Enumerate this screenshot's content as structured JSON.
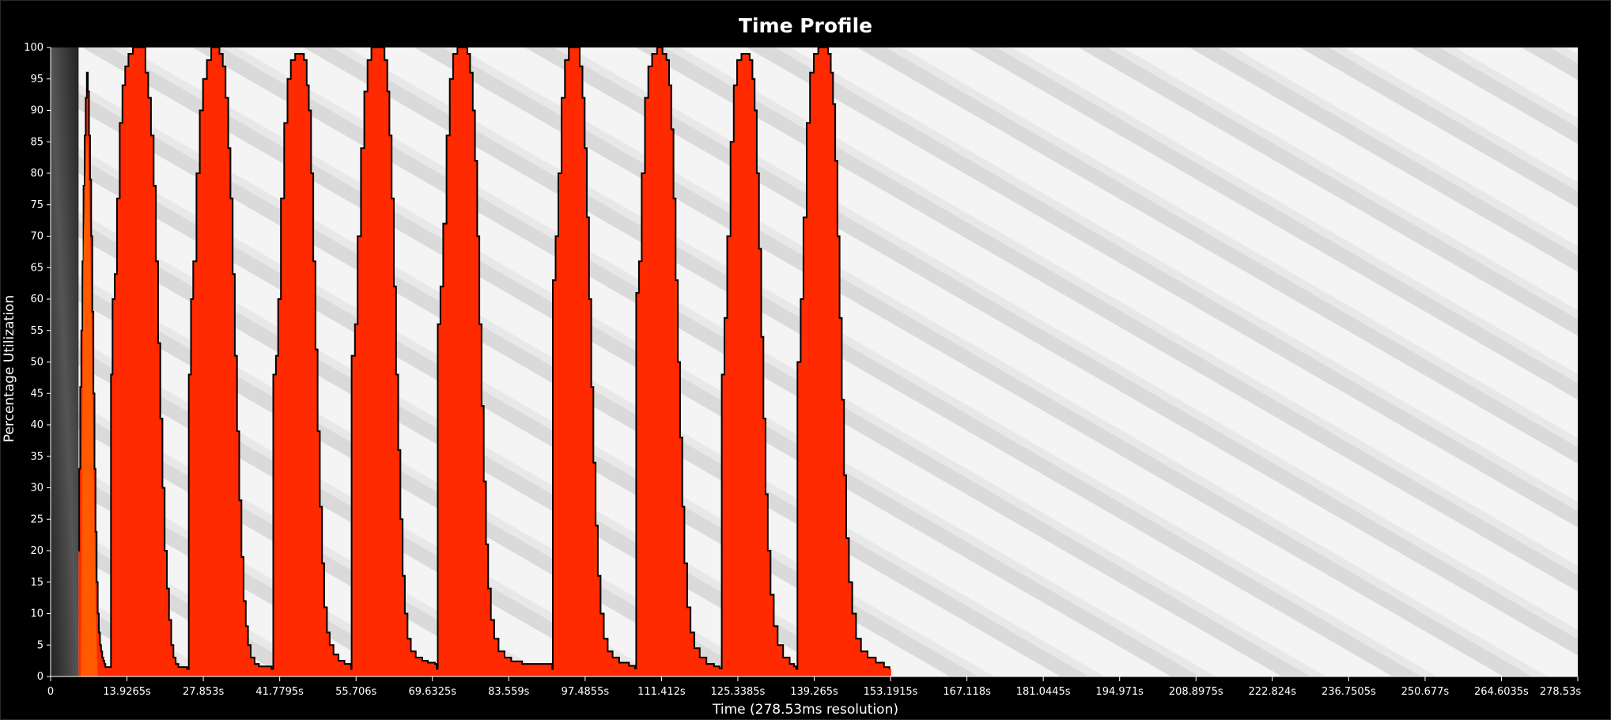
{
  "chart_data": {
    "type": "area",
    "title": "Time Profile",
    "xlabel": "Time (278.53ms resolution)",
    "ylabel": "Percentage Utilization",
    "xlim": [
      0,
      278.53
    ],
    "ylim": [
      0,
      100
    ],
    "y_ticks": [
      0,
      5,
      10,
      15,
      20,
      25,
      30,
      35,
      40,
      45,
      50,
      55,
      60,
      65,
      70,
      75,
      80,
      85,
      90,
      95,
      100
    ],
    "x_ticks": [
      {
        "value": 0,
        "label": "0"
      },
      {
        "value": 13.9265,
        "label": "13.9265s"
      },
      {
        "value": 27.853,
        "label": "27.853s"
      },
      {
        "value": 41.7795,
        "label": "41.7795s"
      },
      {
        "value": 55.706,
        "label": "55.706s"
      },
      {
        "value": 69.6325,
        "label": "69.6325s"
      },
      {
        "value": 83.559,
        "label": "83.559s"
      },
      {
        "value": 97.4855,
        "label": "97.4855s"
      },
      {
        "value": 111.412,
        "label": "111.412s"
      },
      {
        "value": 125.3385,
        "label": "125.3385s"
      },
      {
        "value": 139.265,
        "label": "139.265s"
      },
      {
        "value": 153.1915,
        "label": "153.1915s"
      },
      {
        "value": 167.118,
        "label": "167.118s"
      },
      {
        "value": 181.0445,
        "label": "181.0445s"
      },
      {
        "value": 194.971,
        "label": "194.971s"
      },
      {
        "value": 208.8975,
        "label": "208.8975s"
      },
      {
        "value": 222.824,
        "label": "222.824s"
      },
      {
        "value": 236.7505,
        "label": "236.7505s"
      },
      {
        "value": 250.677,
        "label": "250.677s"
      },
      {
        "value": 264.6035,
        "label": "264.6035s"
      },
      {
        "value": 278.53,
        "label": "278.53s"
      }
    ],
    "grid": false,
    "legend": "none",
    "colors": {
      "series": "#ff2a00",
      "secondary": "#ff5a00",
      "outline": "#000000",
      "background_stripe_a": "#f7f7f7",
      "background_stripe_b": "#dcdcdc",
      "startup_band": "#2b2b2b"
    },
    "startup_band": [
      0,
      5.1
    ],
    "series": [
      {
        "points": [
          [
            5.1,
            20
          ],
          [
            5.2,
            33
          ],
          [
            5.4,
            46
          ],
          [
            5.6,
            55
          ],
          [
            5.8,
            66
          ],
          [
            6.0,
            78
          ],
          [
            6.2,
            86
          ],
          [
            6.4,
            92
          ],
          [
            6.6,
            96
          ],
          [
            6.8,
            93
          ],
          [
            7.0,
            86
          ],
          [
            7.2,
            79
          ],
          [
            7.4,
            70
          ],
          [
            7.6,
            58
          ],
          [
            7.8,
            45
          ],
          [
            8.0,
            33
          ],
          [
            8.2,
            23
          ],
          [
            8.4,
            15
          ],
          [
            8.6,
            10
          ],
          [
            8.8,
            7
          ],
          [
            9.0,
            5
          ],
          [
            9.2,
            4
          ],
          [
            9.4,
            3
          ],
          [
            9.6,
            2.5
          ],
          [
            9.8,
            2
          ],
          [
            10.0,
            1.5
          ],
          [
            11.0,
            48
          ],
          [
            11.3,
            60
          ],
          [
            11.7,
            64
          ],
          [
            12.1,
            76
          ],
          [
            12.6,
            88
          ],
          [
            13.1,
            94
          ],
          [
            13.6,
            97
          ],
          [
            14.2,
            99
          ],
          [
            15.0,
            100
          ],
          [
            16.0,
            100
          ],
          [
            16.8,
            100
          ],
          [
            17.3,
            96
          ],
          [
            17.8,
            92
          ],
          [
            18.3,
            86
          ],
          [
            18.8,
            78
          ],
          [
            19.2,
            66
          ],
          [
            19.6,
            53
          ],
          [
            20.0,
            41
          ],
          [
            20.4,
            30
          ],
          [
            20.8,
            20
          ],
          [
            21.2,
            14
          ],
          [
            21.6,
            9
          ],
          [
            22.0,
            5
          ],
          [
            22.4,
            3
          ],
          [
            22.8,
            2
          ],
          [
            23.3,
            1.5
          ],
          [
            24.2,
            1.5
          ],
          [
            24.9,
            1.2
          ],
          [
            25.2,
            48
          ],
          [
            25.6,
            60
          ],
          [
            26.0,
            66
          ],
          [
            26.6,
            80
          ],
          [
            27.2,
            90
          ],
          [
            27.8,
            95
          ],
          [
            28.5,
            98
          ],
          [
            29.3,
            100
          ],
          [
            30.1,
            100
          ],
          [
            30.8,
            99
          ],
          [
            31.4,
            97
          ],
          [
            31.9,
            92
          ],
          [
            32.4,
            84
          ],
          [
            32.8,
            76
          ],
          [
            33.2,
            64
          ],
          [
            33.6,
            51
          ],
          [
            34.0,
            39
          ],
          [
            34.4,
            28
          ],
          [
            34.8,
            19
          ],
          [
            35.2,
            12
          ],
          [
            35.6,
            8
          ],
          [
            36.0,
            5
          ],
          [
            36.5,
            3
          ],
          [
            37.2,
            2
          ],
          [
            38.0,
            1.6
          ],
          [
            39.4,
            1.6
          ],
          [
            40.3,
            1.2
          ],
          [
            40.6,
            48
          ],
          [
            41.1,
            51
          ],
          [
            41.5,
            60
          ],
          [
            42.0,
            76
          ],
          [
            42.6,
            88
          ],
          [
            43.2,
            95
          ],
          [
            43.8,
            98
          ],
          [
            44.6,
            99
          ],
          [
            45.5,
            99
          ],
          [
            46.2,
            98
          ],
          [
            46.7,
            94
          ],
          [
            47.1,
            90
          ],
          [
            47.5,
            80
          ],
          [
            47.9,
            66
          ],
          [
            48.3,
            52
          ],
          [
            48.7,
            39
          ],
          [
            49.1,
            27
          ],
          [
            49.5,
            18
          ],
          [
            49.9,
            11
          ],
          [
            50.4,
            7
          ],
          [
            50.9,
            5
          ],
          [
            51.6,
            3.5
          ],
          [
            52.5,
            2.5
          ],
          [
            53.6,
            2
          ],
          [
            54.8,
            1.8
          ],
          [
            54.8,
            1.2
          ],
          [
            54.9,
            51
          ],
          [
            55.5,
            56
          ],
          [
            56.0,
            70
          ],
          [
            56.6,
            84
          ],
          [
            57.2,
            93
          ],
          [
            57.8,
            98
          ],
          [
            58.5,
            100
          ],
          [
            59.4,
            100
          ],
          [
            60.3,
            100
          ],
          [
            60.9,
            98
          ],
          [
            61.4,
            93
          ],
          [
            61.8,
            86
          ],
          [
            62.2,
            76
          ],
          [
            62.6,
            62
          ],
          [
            63.0,
            48
          ],
          [
            63.4,
            36
          ],
          [
            63.8,
            25
          ],
          [
            64.2,
            16
          ],
          [
            64.6,
            10
          ],
          [
            65.1,
            6
          ],
          [
            65.7,
            4
          ],
          [
            66.6,
            3
          ],
          [
            67.8,
            2.5
          ],
          [
            68.8,
            2.2
          ],
          [
            70.1,
            2
          ],
          [
            70.4,
            1.2
          ],
          [
            70.6,
            56
          ],
          [
            71.1,
            62
          ],
          [
            71.6,
            72
          ],
          [
            72.2,
            86
          ],
          [
            72.8,
            95
          ],
          [
            73.4,
            99
          ],
          [
            74.2,
            100
          ],
          [
            75.2,
            100
          ],
          [
            76.0,
            99
          ],
          [
            76.5,
            96
          ],
          [
            77.0,
            90
          ],
          [
            77.4,
            82
          ],
          [
            77.8,
            70
          ],
          [
            78.2,
            56
          ],
          [
            78.6,
            43
          ],
          [
            79.0,
            31
          ],
          [
            79.4,
            21
          ],
          [
            79.8,
            14
          ],
          [
            80.3,
            9
          ],
          [
            80.9,
            6
          ],
          [
            81.7,
            4
          ],
          [
            82.8,
            3
          ],
          [
            84.0,
            2.4
          ],
          [
            86.0,
            2
          ],
          [
            88.0,
            2
          ],
          [
            91.4,
            2
          ],
          [
            91.5,
            1.2
          ],
          [
            91.6,
            63
          ],
          [
            92.1,
            70
          ],
          [
            92.6,
            80
          ],
          [
            93.2,
            92
          ],
          [
            93.8,
            98
          ],
          [
            94.5,
            100
          ],
          [
            95.3,
            100
          ],
          [
            96.0,
            100
          ],
          [
            96.5,
            97
          ],
          [
            97.0,
            92
          ],
          [
            97.4,
            84
          ],
          [
            97.8,
            73
          ],
          [
            98.2,
            60
          ],
          [
            98.6,
            46
          ],
          [
            99.0,
            34
          ],
          [
            99.4,
            24
          ],
          [
            99.8,
            16
          ],
          [
            100.3,
            10
          ],
          [
            100.9,
            6
          ],
          [
            101.6,
            4
          ],
          [
            102.5,
            3
          ],
          [
            103.7,
            2.2
          ],
          [
            105.5,
            1.7
          ],
          [
            106.6,
            1.3
          ],
          [
            106.8,
            61
          ],
          [
            107.3,
            66
          ],
          [
            107.8,
            80
          ],
          [
            108.4,
            92
          ],
          [
            109.0,
            97
          ],
          [
            109.7,
            99
          ],
          [
            110.6,
            100
          ],
          [
            111.6,
            99
          ],
          [
            112.3,
            98
          ],
          [
            112.8,
            94
          ],
          [
            113.2,
            87
          ],
          [
            113.6,
            76
          ],
          [
            114.0,
            63
          ],
          [
            114.4,
            50
          ],
          [
            114.8,
            38
          ],
          [
            115.2,
            27
          ],
          [
            115.6,
            18
          ],
          [
            116.1,
            11
          ],
          [
            116.7,
            7
          ],
          [
            117.4,
            4.5
          ],
          [
            118.4,
            3
          ],
          [
            119.6,
            2
          ],
          [
            121.0,
            1.6
          ],
          [
            122.0,
            1.3
          ],
          [
            122.4,
            48
          ],
          [
            122.9,
            57
          ],
          [
            123.4,
            70
          ],
          [
            124.0,
            85
          ],
          [
            124.6,
            94
          ],
          [
            125.2,
            98
          ],
          [
            126.0,
            99
          ],
          [
            126.8,
            99
          ],
          [
            127.5,
            98
          ],
          [
            128.0,
            95
          ],
          [
            128.4,
            90
          ],
          [
            128.8,
            80
          ],
          [
            129.2,
            68
          ],
          [
            129.6,
            54
          ],
          [
            130.0,
            41
          ],
          [
            130.4,
            29
          ],
          [
            130.8,
            20
          ],
          [
            131.3,
            13
          ],
          [
            131.9,
            8
          ],
          [
            132.6,
            5
          ],
          [
            133.6,
            3
          ],
          [
            134.8,
            2
          ],
          [
            135.6,
            1.6
          ],
          [
            136.0,
            1.2
          ],
          [
            136.2,
            50
          ],
          [
            136.8,
            60
          ],
          [
            137.3,
            73
          ],
          [
            137.9,
            88
          ],
          [
            138.5,
            96
          ],
          [
            139.2,
            99
          ],
          [
            140.0,
            100
          ],
          [
            141.0,
            100
          ],
          [
            141.8,
            99
          ],
          [
            142.3,
            96
          ],
          [
            142.7,
            91
          ],
          [
            143.1,
            82
          ],
          [
            143.5,
            70
          ],
          [
            143.9,
            57
          ],
          [
            144.3,
            44
          ],
          [
            144.7,
            32
          ],
          [
            145.1,
            22
          ],
          [
            145.6,
            15
          ],
          [
            146.2,
            10
          ],
          [
            146.9,
            6
          ],
          [
            147.8,
            4
          ],
          [
            149.0,
            3
          ],
          [
            150.5,
            2.2
          ],
          [
            152.0,
            1.5
          ],
          [
            153.0,
            1.2
          ]
        ],
        "note_layers": "baseline idle segments"
      }
    ]
  }
}
